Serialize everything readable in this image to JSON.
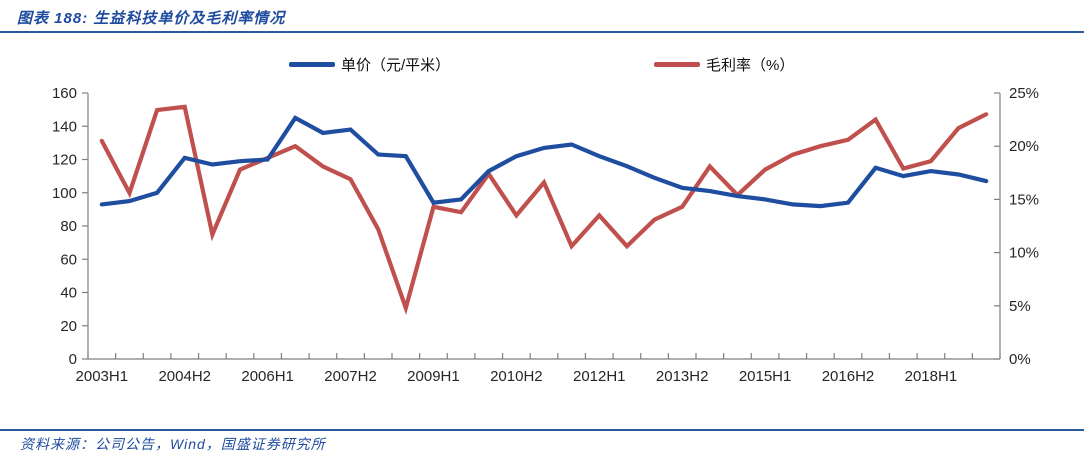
{
  "header": {
    "title": "图表 188: 生益科技单价及毛利率情况"
  },
  "legend": {
    "items": [
      {
        "label": "单价（元/平米）",
        "color": "#1F4EA0"
      },
      {
        "label": "毛利率（%）",
        "color": "#C0504D"
      }
    ]
  },
  "footer": {
    "source": "资料来源：公司公告，Wind，国盛证券研究所"
  },
  "colors": {
    "accent_blue": "#1F4EA0",
    "accent_red": "#C0504D",
    "rule_blue": "#2D5A9E",
    "axis_gray": "#808080",
    "tick_text": "#262626",
    "title_blue": "#1E4B9E"
  },
  "chart_data": {
    "type": "line",
    "title": "生益科技单价及毛利率情况",
    "categories": [
      "2003H1",
      "2003H2",
      "2004H1",
      "2004H2",
      "2005H1",
      "2005H2",
      "2006H1",
      "2006H2",
      "2007H1",
      "2007H2",
      "2008H1",
      "2008H2",
      "2009H1",
      "2009H2",
      "2010H1",
      "2010H2",
      "2011H1",
      "2011H2",
      "2012H1",
      "2012H2",
      "2013H1",
      "2013H2",
      "2014H1",
      "2014H2",
      "2015H1",
      "2015H2",
      "2016H1",
      "2016H2",
      "2017H1",
      "2017H2",
      "2018H1",
      "2018H2",
      "2019H1"
    ],
    "x_label_every": 3,
    "x_tick_labels_shown": [
      "2003H1",
      "2004H2",
      "2006H1",
      "2007H2",
      "2009H1",
      "2010H2",
      "2012H1",
      "2013H2",
      "2015H1",
      "2016H2",
      "2018H1"
    ],
    "series": [
      {
        "name": "单价（元/平米）",
        "axis": "left",
        "color": "#1F4EA0",
        "values": [
          93,
          95,
          100,
          121,
          117,
          119,
          120,
          145,
          136,
          138,
          123,
          122,
          94,
          96,
          113,
          122,
          127,
          129,
          122,
          116,
          109,
          103,
          101,
          98,
          96,
          93,
          92,
          94,
          115,
          110,
          113,
          111,
          107
        ]
      },
      {
        "name": "毛利率（%）",
        "axis": "right",
        "color": "#C0504D",
        "values": [
          20.5,
          15.6,
          23.4,
          23.7,
          11.7,
          17.8,
          18.9,
          20.0,
          18.1,
          16.9,
          12.2,
          4.8,
          14.3,
          13.8,
          17.4,
          13.5,
          16.6,
          10.6,
          13.5,
          10.6,
          13.1,
          14.3,
          18.1,
          15.4,
          17.8,
          19.2,
          20.0,
          20.6,
          22.5,
          17.9,
          18.6,
          21.7,
          23.0
        ]
      }
    ],
    "left_axis": {
      "min": 0,
      "max": 160,
      "step": 20,
      "tick_labels": [
        "0",
        "20",
        "40",
        "60",
        "80",
        "100",
        "120",
        "140",
        "160"
      ]
    },
    "right_axis": {
      "min": 0,
      "max": 25,
      "step": 5,
      "suffix": "%",
      "tick_labels": [
        "0%",
        "5%",
        "10%",
        "15%",
        "20%",
        "25%"
      ]
    },
    "grid": false,
    "legend_position": "top"
  }
}
